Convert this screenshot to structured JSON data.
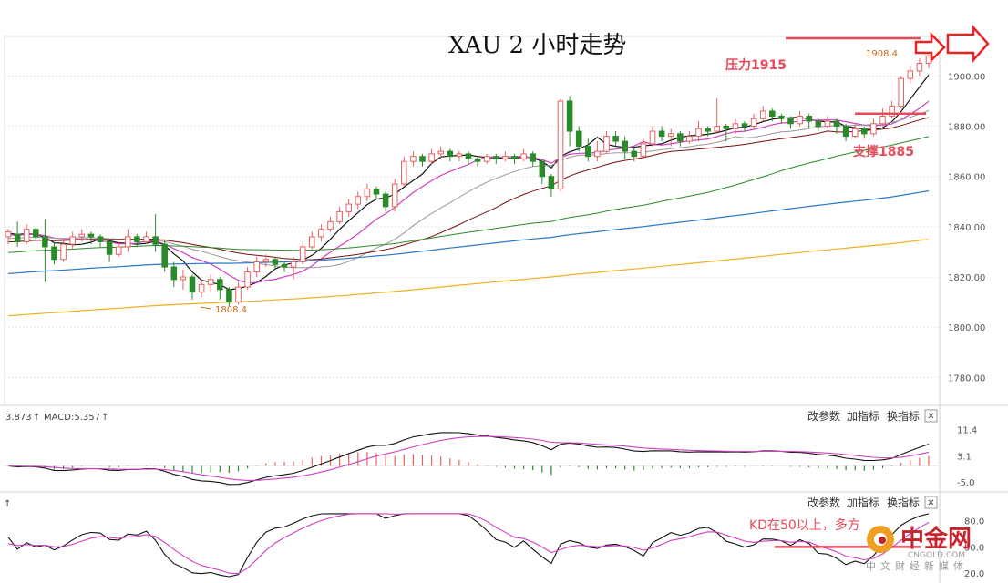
{
  "chart_data": [
    {
      "type": "candlestick",
      "title": "XAU 2 小时走势",
      "yticks": [
        "1900.00",
        "1880.00",
        "1860.00",
        "1840.00",
        "1820.00",
        "1800.00",
        "1780.00"
      ],
      "ylim": [
        1770,
        1915
      ],
      "grid": true,
      "annotations": {
        "resistance": "压力1915",
        "support": "支撑1885",
        "low_mark": "1808.4",
        "high_mark": "1908.4",
        "resistance_price": 1915,
        "support_price": 1885
      },
      "candles": [
        [
          1836,
          1838,
          1833,
          1839
        ],
        [
          1837,
          1834,
          1832,
          1842
        ],
        [
          1834,
          1839,
          1833,
          1841
        ],
        [
          1839,
          1836,
          1835,
          1840
        ],
        [
          1836,
          1832,
          1818,
          1843
        ],
        [
          1832,
          1827,
          1825,
          1834
        ],
        [
          1827,
          1833,
          1826,
          1835
        ],
        [
          1833,
          1836,
          1831,
          1838
        ],
        [
          1836,
          1837,
          1834,
          1839
        ],
        [
          1837,
          1836,
          1833,
          1838
        ],
        [
          1836,
          1834,
          1832,
          1837
        ],
        [
          1834,
          1829,
          1826,
          1835
        ],
        [
          1829,
          1832,
          1828,
          1834
        ],
        [
          1832,
          1836,
          1830,
          1839
        ],
        [
          1836,
          1834,
          1832,
          1837
        ],
        [
          1834,
          1836,
          1833,
          1838
        ],
        [
          1836,
          1833,
          1830,
          1845
        ],
        [
          1833,
          1824,
          1822,
          1835
        ],
        [
          1824,
          1819,
          1816,
          1826
        ],
        [
          1819,
          1820,
          1815,
          1823
        ],
        [
          1820,
          1814,
          1811,
          1821
        ],
        [
          1814,
          1817,
          1812,
          1819
        ],
        [
          1817,
          1819,
          1814,
          1821
        ],
        [
          1819,
          1815,
          1811,
          1820
        ],
        [
          1815,
          1810,
          1808.4,
          1816
        ],
        [
          1810,
          1816,
          1809,
          1818
        ],
        [
          1816,
          1822,
          1815,
          1824
        ],
        [
          1822,
          1826,
          1820,
          1828
        ],
        [
          1826,
          1827,
          1824,
          1829
        ],
        [
          1827,
          1825,
          1823,
          1828
        ],
        [
          1825,
          1824,
          1822,
          1826
        ],
        [
          1824,
          1826,
          1819,
          1828
        ],
        [
          1826,
          1832,
          1825,
          1834
        ],
        [
          1832,
          1836,
          1831,
          1838
        ],
        [
          1836,
          1839,
          1834,
          1841
        ],
        [
          1839,
          1842,
          1838,
          1844
        ],
        [
          1842,
          1846,
          1841,
          1848
        ],
        [
          1846,
          1849,
          1844,
          1851
        ],
        [
          1849,
          1852,
          1847,
          1854
        ],
        [
          1852,
          1855,
          1850,
          1857
        ],
        [
          1855,
          1853,
          1851,
          1856
        ],
        [
          1853,
          1848,
          1846,
          1854
        ],
        [
          1848,
          1857,
          1846,
          1859
        ],
        [
          1857,
          1866,
          1856,
          1868
        ],
        [
          1866,
          1868,
          1864,
          1870
        ],
        [
          1868,
          1866,
          1864,
          1869
        ],
        [
          1866,
          1869,
          1865,
          1871
        ],
        [
          1869,
          1870,
          1867,
          1872
        ],
        [
          1870,
          1868,
          1866,
          1871
        ],
        [
          1868,
          1869,
          1866,
          1870
        ],
        [
          1869,
          1867,
          1865,
          1870
        ],
        [
          1867,
          1866,
          1864,
          1868
        ],
        [
          1866,
          1868,
          1865,
          1869
        ],
        [
          1868,
          1867,
          1865,
          1869
        ],
        [
          1867,
          1868,
          1866,
          1870
        ],
        [
          1868,
          1867,
          1865,
          1869
        ],
        [
          1867,
          1869,
          1866,
          1871
        ],
        [
          1869,
          1866,
          1864,
          1870
        ],
        [
          1866,
          1860,
          1857,
          1867
        ],
        [
          1860,
          1855,
          1852,
          1861
        ],
        [
          1855,
          1890,
          1854,
          1891
        ],
        [
          1890,
          1878,
          1872,
          1892
        ],
        [
          1878,
          1872,
          1870,
          1880
        ],
        [
          1872,
          1868,
          1866,
          1875
        ],
        [
          1868,
          1870,
          1866,
          1874
        ],
        [
          1870,
          1876,
          1869,
          1878
        ],
        [
          1876,
          1874,
          1872,
          1878
        ],
        [
          1874,
          1870,
          1867,
          1876
        ],
        [
          1870,
          1868,
          1866,
          1872
        ],
        [
          1868,
          1873,
          1867,
          1875
        ],
        [
          1873,
          1878,
          1872,
          1880
        ],
        [
          1878,
          1876,
          1874,
          1880
        ],
        [
          1876,
          1877,
          1872,
          1879
        ],
        [
          1877,
          1874,
          1872,
          1878
        ],
        [
          1874,
          1876,
          1873,
          1878
        ],
        [
          1876,
          1879,
          1874,
          1882
        ],
        [
          1879,
          1878,
          1876,
          1880
        ],
        [
          1878,
          1880,
          1877,
          1891
        ],
        [
          1880,
          1879,
          1874,
          1881
        ],
        [
          1879,
          1881,
          1877,
          1883
        ],
        [
          1881,
          1880,
          1878,
          1882
        ],
        [
          1880,
          1883,
          1879,
          1885
        ],
        [
          1883,
          1886,
          1882,
          1888
        ],
        [
          1886,
          1884,
          1882,
          1887
        ],
        [
          1884,
          1883,
          1881,
          1885
        ],
        [
          1883,
          1881,
          1879,
          1884
        ],
        [
          1881,
          1884,
          1880,
          1886
        ],
        [
          1884,
          1882,
          1879,
          1885
        ],
        [
          1882,
          1880,
          1878,
          1883
        ],
        [
          1880,
          1882,
          1879,
          1884
        ],
        [
          1882,
          1880,
          1877,
          1883
        ],
        [
          1880,
          1876,
          1874,
          1881
        ],
        [
          1876,
          1879,
          1875,
          1881
        ],
        [
          1879,
          1877,
          1875,
          1880
        ],
        [
          1877,
          1881,
          1876,
          1883
        ],
        [
          1881,
          1884,
          1880,
          1887
        ],
        [
          1884,
          1888,
          1883,
          1890
        ],
        [
          1888,
          1899,
          1887,
          1900
        ],
        [
          1899,
          1902,
          1897,
          1904
        ],
        [
          1902,
          1905,
          1900,
          1907
        ],
        [
          1905,
          1908,
          1903,
          1908.4
        ]
      ]
    },
    {
      "type": "macd",
      "label": "MACD:5.357",
      "prefix": "3.873",
      "yticks": [
        "11.4",
        "3.1",
        "-5.0"
      ],
      "ylim": [
        -7,
        13
      ]
    },
    {
      "type": "kd",
      "yticks": [
        "80.0",
        "50.0",
        "20.0"
      ],
      "ylim": [
        15,
        90
      ],
      "annotation": "KD在50以上，多方",
      "annotation_level": 50
    }
  ],
  "toolbar": {
    "change_params": "改参数",
    "add_indicator": "加指标",
    "switch_indicator": "换指标",
    "close": "✕"
  },
  "watermark": {
    "logo": "中金网",
    "domain": "CNGOLD.COM",
    "tagline": "中文财经新媒体"
  },
  "colors": {
    "up": "#e8605f",
    "down": "#2a8a2a",
    "ma5": "#111111",
    "ma10": "#d040c0",
    "ma20": "#999999",
    "ma30": "#7a1010",
    "ma60": "#2a8a2a",
    "ma120": "#2a78c8",
    "ma240": "#f0b020",
    "annotation": "#e84a5a"
  }
}
